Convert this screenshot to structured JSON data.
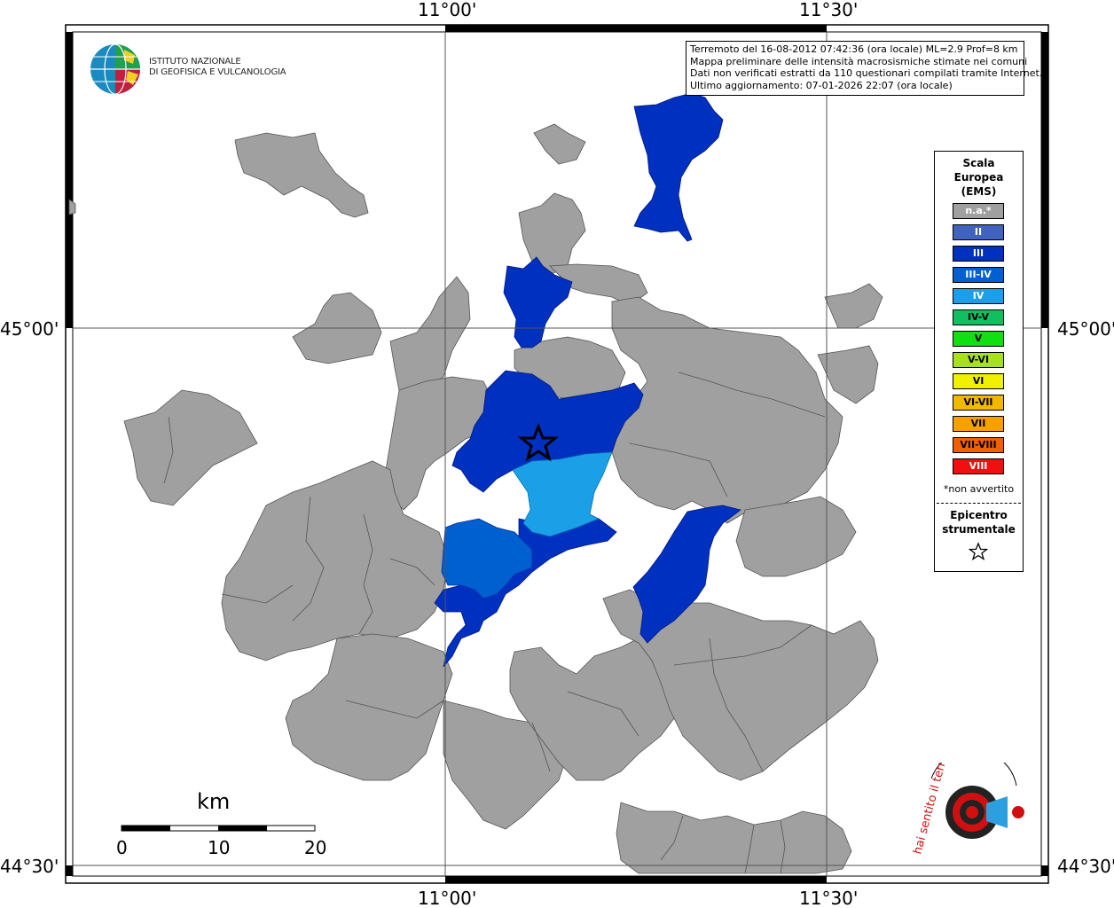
{
  "coordinates": {
    "top_left_lon": "11°00'",
    "top_right_lon": "11°30'",
    "bottom_left_lon": "11°00'",
    "bottom_right_lon": "11°30'",
    "left_lat_upper": "45°00'",
    "left_lat_lower": "44°30'",
    "right_lat_upper": "45°00'",
    "right_lat_lower": "44°30'"
  },
  "info": {
    "line1": "Terremoto del 16-08-2012 07:42:36 (ora locale) ML=2.9 Prof=8 km",
    "line2": "Mappa preliminare delle intensità macrosismiche stimate nei comuni",
    "line3": "Dati non verificati estratti da 110 questionari compilati tramite Internet.",
    "line4": "Ultimo aggiornamento: 07-01-2026 22:07 (ora locale)"
  },
  "ingv": {
    "line1": "ISTITUTO NAZIONALE",
    "line2": "DI GEOFISICA E VULCANOLOGIA"
  },
  "legend": {
    "title1": "Scala",
    "title2": "Europea",
    "title3": "(EMS)",
    "items": [
      {
        "label": "n.a.*",
        "color": "#a0a0a0",
        "text": "#ffffff"
      },
      {
        "label": "II",
        "color": "#3f63bf",
        "text": "#ffffff"
      },
      {
        "label": "III",
        "color": "#0030c0",
        "text": "#ffffff"
      },
      {
        "label": "III-IV",
        "color": "#0060d0",
        "text": "#ffffff"
      },
      {
        "label": "IV",
        "color": "#1ba0e8",
        "text": "#ffffff"
      },
      {
        "label": "IV-V",
        "color": "#10c060",
        "text": "#000000"
      },
      {
        "label": "V",
        "color": "#10e010",
        "text": "#000000"
      },
      {
        "label": "V-VI",
        "color": "#a8e020",
        "text": "#000000"
      },
      {
        "label": "VI",
        "color": "#f0f000",
        "text": "#000000"
      },
      {
        "label": "VI-VII",
        "color": "#f0b800",
        "text": "#000000"
      },
      {
        "label": "VII",
        "color": "#f8a000",
        "text": "#000000"
      },
      {
        "label": "VII-VIII",
        "color": "#f06000",
        "text": "#000000"
      },
      {
        "label": "VIII",
        "color": "#f01010",
        "text": "#ffffff"
      }
    ],
    "note": "*non avvertito",
    "epi1": "Epicentro",
    "epi2": "strumentale"
  },
  "scale_bar": {
    "unit": "km",
    "ticks": [
      "0",
      "10",
      "20"
    ]
  },
  "colors": {
    "grey": "#a0a0a0",
    "ems_iii": "#0030c0",
    "ems_iii_iv": "#0060d0",
    "ems_iv": "#1ba0e8"
  },
  "logo": {
    "text": "hai sentito il terremoto.it www."
  }
}
